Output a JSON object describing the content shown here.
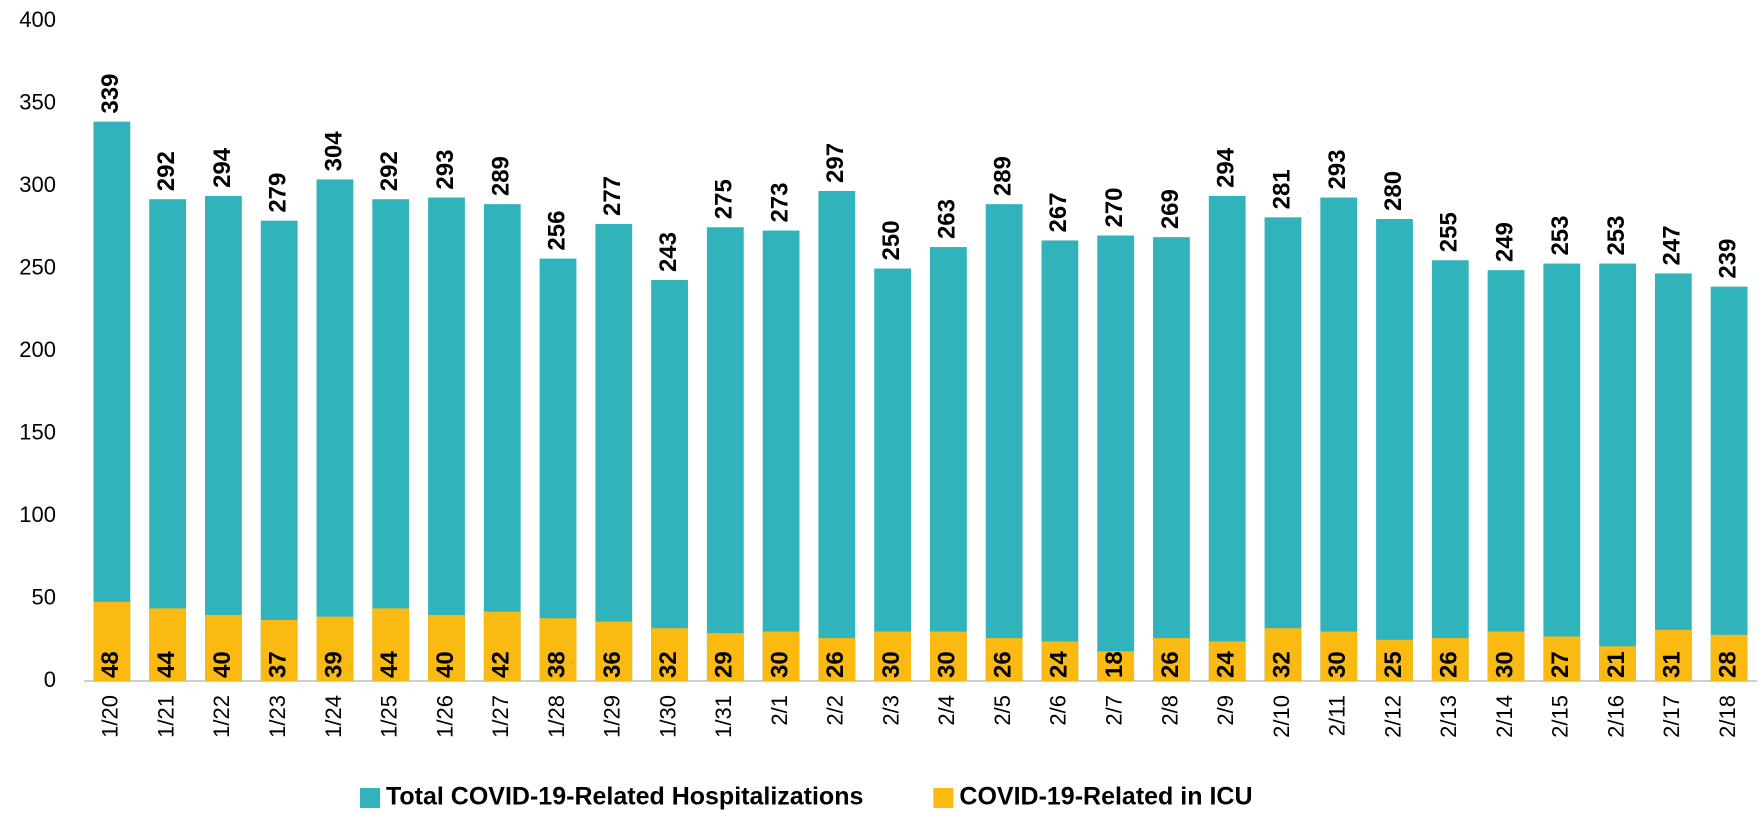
{
  "chart_data": {
    "type": "bar",
    "categories": [
      "1/20",
      "1/21",
      "1/22",
      "1/23",
      "1/24",
      "1/25",
      "1/26",
      "1/27",
      "1/28",
      "1/29",
      "1/30",
      "1/31",
      "2/1",
      "2/2",
      "2/3",
      "2/4",
      "2/5",
      "2/6",
      "2/7",
      "2/8",
      "2/9",
      "2/10",
      "2/11",
      "2/12",
      "2/13",
      "2/14",
      "2/15",
      "2/16",
      "2/17",
      "2/18"
    ],
    "series": [
      {
        "name": "Total COVID-19-Related Hospitalizations",
        "color": "#31b3bb",
        "values": [
          339,
          292,
          294,
          279,
          304,
          292,
          293,
          289,
          256,
          277,
          243,
          275,
          273,
          297,
          250,
          263,
          289,
          267,
          270,
          269,
          294,
          281,
          293,
          280,
          255,
          249,
          253,
          253,
          247,
          239
        ]
      },
      {
        "name": "COVID-19-Related in ICU",
        "color": "#fbba12",
        "values": [
          48,
          44,
          40,
          37,
          39,
          44,
          40,
          42,
          38,
          36,
          32,
          29,
          30,
          26,
          30,
          30,
          26,
          24,
          18,
          26,
          24,
          32,
          30,
          25,
          26,
          30,
          27,
          21,
          31,
          28
        ]
      }
    ],
    "ylim": [
      0,
      400
    ],
    "yticks": [
      0,
      50,
      100,
      150,
      200,
      250,
      300,
      350,
      400
    ],
    "grid": false,
    "legend": "bottom"
  }
}
